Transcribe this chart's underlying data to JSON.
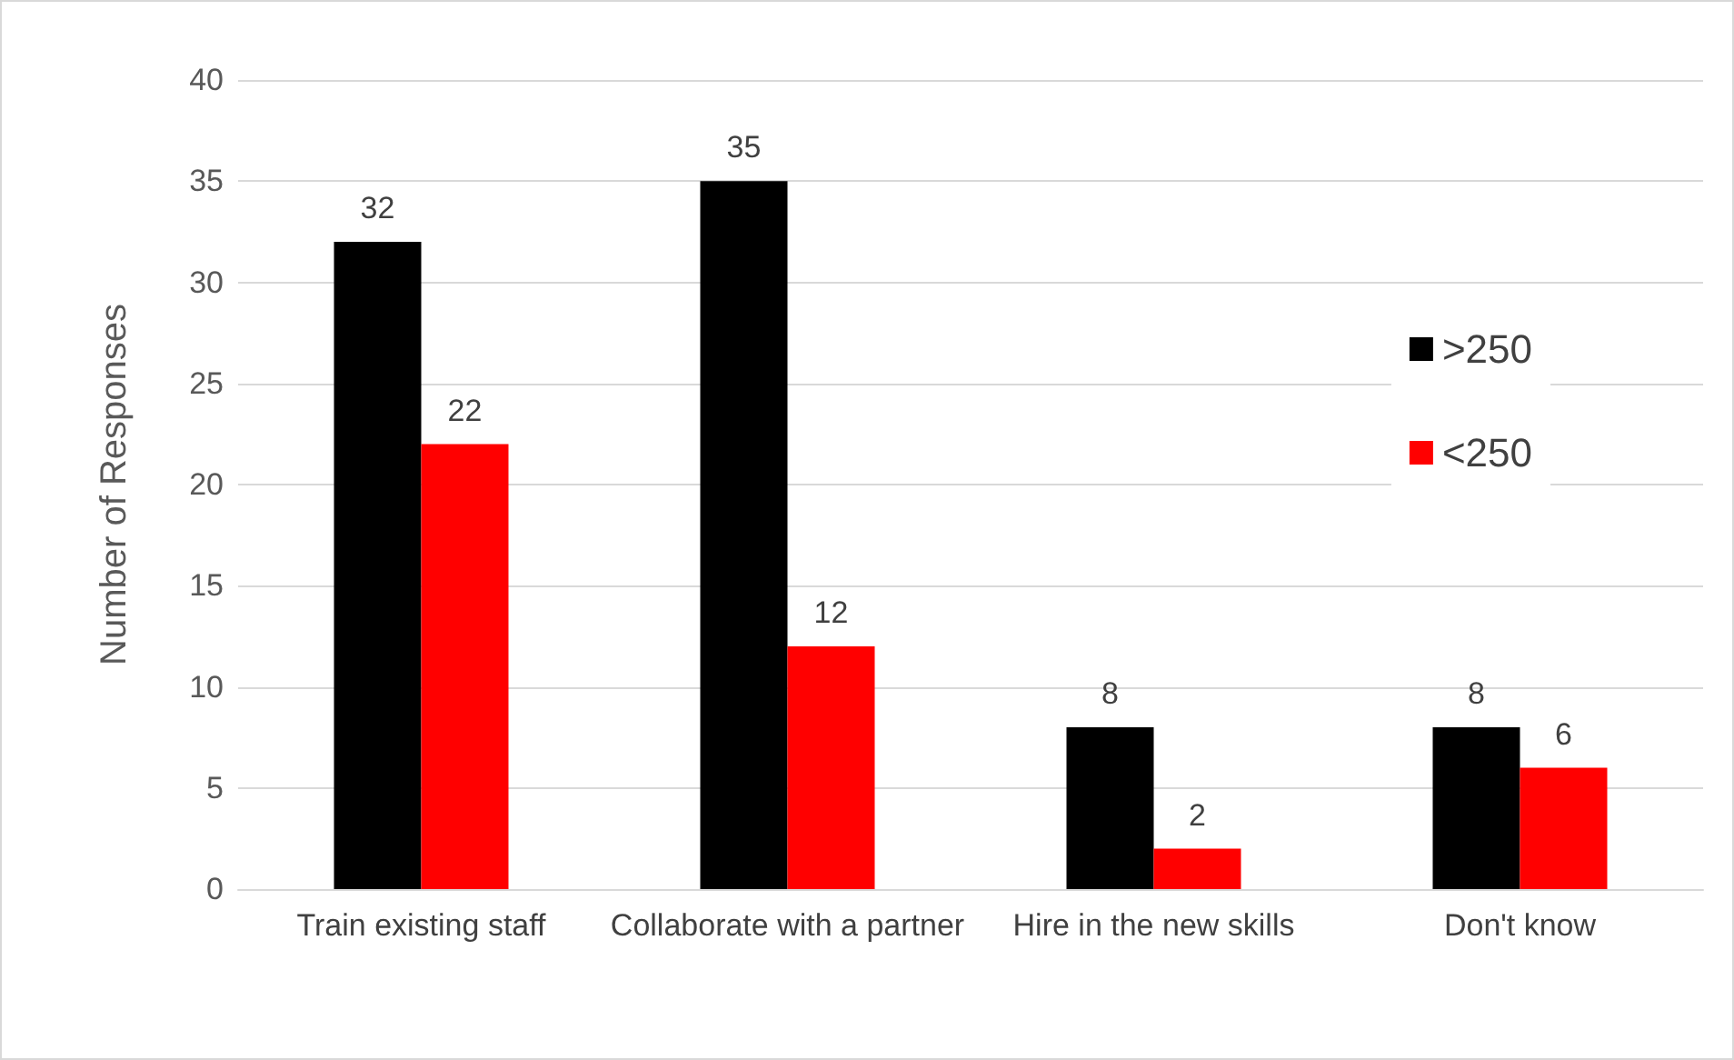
{
  "chart_data": {
    "type": "bar",
    "ylabel": "Number of Responses",
    "categories": [
      "Train existing staff",
      "Collaborate with a partner",
      "Hire in the new skills",
      "Don't know"
    ],
    "series": [
      {
        "name": ">250",
        "color": "#000000",
        "values": [
          32,
          35,
          8,
          8
        ]
      },
      {
        "name": "<250",
        "color": "#ff0000",
        "values": [
          22,
          12,
          2,
          6
        ]
      }
    ],
    "ylim": [
      0,
      40
    ],
    "yticks": [
      0,
      5,
      10,
      15,
      20,
      25,
      30,
      35,
      40
    ],
    "grid": "y",
    "legend": "right",
    "data_labels": true
  }
}
